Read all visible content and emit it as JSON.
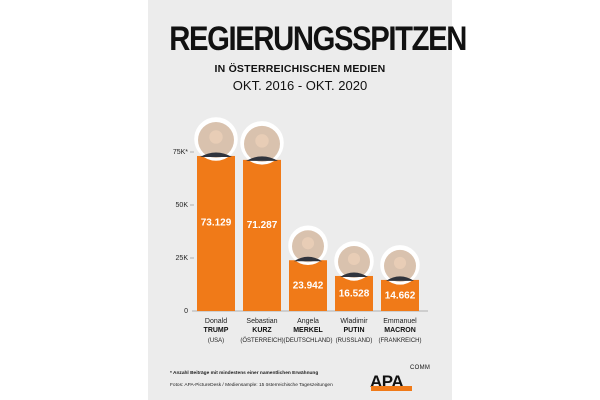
{
  "header": {
    "title": "REGIERUNGSSPITZEN",
    "subtitle": "IN ÖSTERREICHISCHEN MEDIEN",
    "period": "OKT. 2016 - OKT. 2020"
  },
  "colors": {
    "bar": "#f07a18",
    "text": "#111111",
    "background": "#ececec"
  },
  "chart_data": {
    "type": "bar",
    "title": "REGIERUNGSSPITZEN",
    "ylim": [
      0,
      75000
    ],
    "yticks": [
      {
        "value": 0,
        "label": "0"
      },
      {
        "value": 25000,
        "label": "25K"
      },
      {
        "value": 50000,
        "label": "50K"
      },
      {
        "value": 75000,
        "label": "75K*"
      }
    ],
    "bars": [
      {
        "first": "Donald",
        "last": "TRUMP",
        "country": "(USA)",
        "value": 73129,
        "label": "73.129",
        "photo": "trump-photo"
      },
      {
        "first": "Sebastian",
        "last": "KURZ",
        "country": "(ÖSTERREICH)",
        "value": 71287,
        "label": "71.287",
        "photo": "kurz-photo"
      },
      {
        "first": "Angela",
        "last": "MERKEL",
        "country": "(DEUTSCHLAND)",
        "value": 23942,
        "label": "23.942",
        "photo": "merkel-photo"
      },
      {
        "first": "Wladimir",
        "last": "PUTIN",
        "country": "(RUSSLAND)",
        "value": 16528,
        "label": "16.528",
        "photo": "putin-photo"
      },
      {
        "first": "Emmanuel",
        "last": "MACRON",
        "country": "(FRANKREICH)",
        "value": 14662,
        "label": "14.662",
        "photo": "macron-photo"
      }
    ]
  },
  "footer": {
    "footnote": "* Anzahl Beiträge mit mindestens einer namentlichen Erwähnung",
    "credit": "Fotos: APA-PictureDesk / Mediensample: 15 österreichische Tageszeitungen",
    "logo_text": "APA",
    "logo_comm": "COMM"
  }
}
